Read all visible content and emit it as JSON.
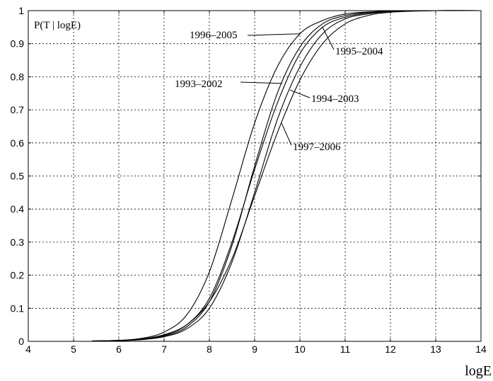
{
  "chart_data": {
    "type": "line",
    "title": "",
    "xlabel": "logE",
    "ylabel": "P(T | logE)",
    "xlim": [
      4,
      14
    ],
    "ylim": [
      0,
      1
    ],
    "xticks": [
      4,
      5,
      6,
      7,
      8,
      9,
      10,
      11,
      12,
      13,
      14
    ],
    "yticks": [
      0,
      0.1,
      0.2,
      0.3,
      0.4,
      0.5,
      0.6,
      0.7,
      0.8,
      0.9,
      1
    ],
    "grid": true,
    "series": [
      {
        "name": "1996–2005",
        "x": [
          5.4,
          6,
          6.5,
          7,
          7.5,
          8,
          8.5,
          9,
          9.5,
          10,
          10.5,
          11,
          11.5,
          12,
          13,
          14
        ],
        "values": [
          0.001,
          0.003,
          0.009,
          0.028,
          0.08,
          0.21,
          0.43,
          0.66,
          0.83,
          0.93,
          0.97,
          0.99,
          0.996,
          0.999,
          1,
          1
        ]
      },
      {
        "name": "1995–2004",
        "x": [
          5.4,
          6,
          6.5,
          7,
          7.5,
          8,
          8.5,
          9,
          9.5,
          10,
          10.5,
          11,
          11.5,
          12,
          13,
          14
        ],
        "values": [
          0.001,
          0.002,
          0.006,
          0.018,
          0.05,
          0.13,
          0.3,
          0.52,
          0.72,
          0.87,
          0.95,
          0.98,
          0.993,
          0.998,
          1,
          1
        ]
      },
      {
        "name": "1993–2002",
        "x": [
          5.4,
          6,
          6.5,
          7,
          7.5,
          8,
          8.5,
          9,
          9.5,
          10,
          10.5,
          11,
          11.5,
          12,
          13,
          14
        ],
        "values": [
          0.001,
          0.002,
          0.006,
          0.016,
          0.044,
          0.12,
          0.29,
          0.53,
          0.75,
          0.89,
          0.96,
          0.985,
          0.995,
          0.999,
          1,
          1
        ]
      },
      {
        "name": "1994–2003",
        "x": [
          5.4,
          6,
          6.5,
          7,
          7.5,
          8,
          8.5,
          9,
          9.5,
          10,
          10.5,
          11,
          11.5,
          12,
          13,
          14
        ],
        "values": [
          0.001,
          0.002,
          0.005,
          0.014,
          0.038,
          0.1,
          0.24,
          0.45,
          0.67,
          0.83,
          0.93,
          0.975,
          0.99,
          0.997,
          1,
          1
        ]
      },
      {
        "name": "1997–2006",
        "x": [
          5.4,
          6,
          6.5,
          7,
          7.5,
          8,
          8.5,
          9,
          9.5,
          10,
          10.5,
          11,
          11.5,
          12,
          13,
          14
        ],
        "values": [
          0.001,
          0.003,
          0.007,
          0.02,
          0.05,
          0.12,
          0.25,
          0.44,
          0.63,
          0.79,
          0.9,
          0.96,
          0.985,
          0.995,
          1,
          1
        ]
      }
    ],
    "annotations": [
      {
        "text": "1996–2005",
        "series": 0
      },
      {
        "text": "1995–2004",
        "series": 1
      },
      {
        "text": "1993–2002",
        "series": 2
      },
      {
        "text": "1994–2003",
        "series": 3
      },
      {
        "text": "1997–2006",
        "series": 4
      }
    ]
  }
}
